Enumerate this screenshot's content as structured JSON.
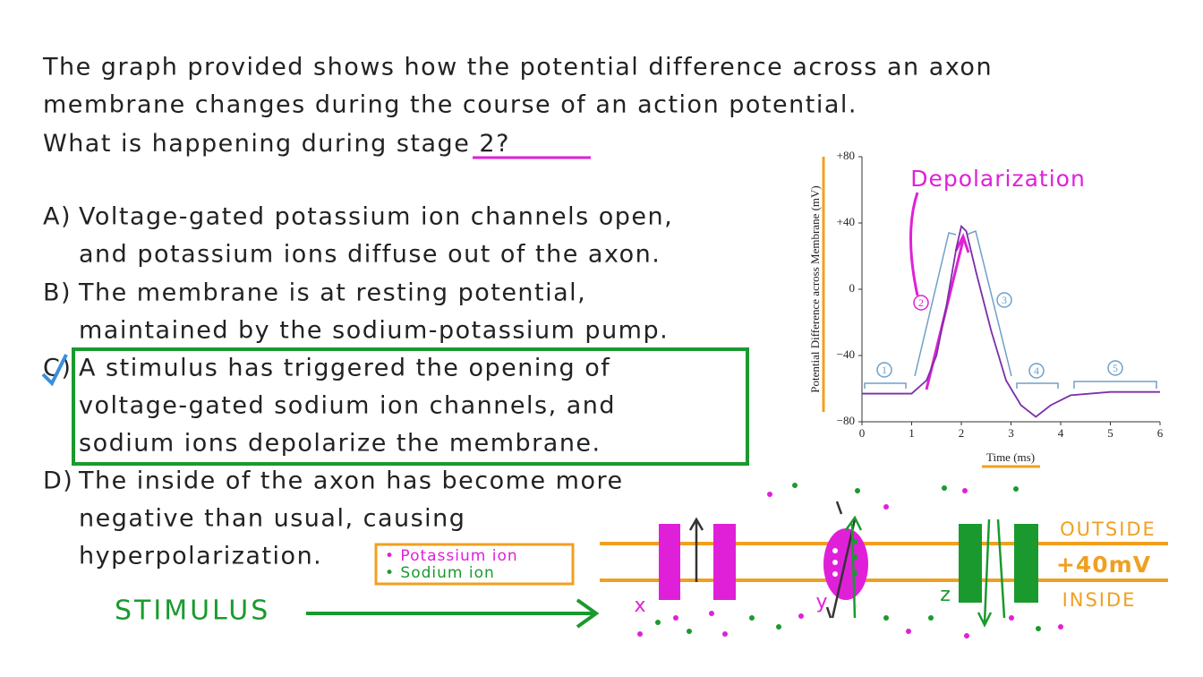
{
  "question": {
    "lines": [
      "The graph provided shows how the potential difference across an axon",
      "membrane changes during the course of an action potential."
    ],
    "prefix": "What is happening during ",
    "highlight": "stage 2",
    "suffix": "?"
  },
  "options": [
    {
      "letter": "A)",
      "lines": [
        "Voltage-gated potassium ion channels open,",
        "and potassium ions diffuse out of the axon."
      ]
    },
    {
      "letter": "B)",
      "lines": [
        "The membrane is at resting potential,",
        "maintained by the sodium-potassium pump."
      ]
    },
    {
      "letter": "C)",
      "lines": [
        "A stimulus has triggered the opening of",
        "voltage-gated sodium ion channels, and",
        "sodium ions depolarize the membrane."
      ]
    },
    {
      "letter": "D)",
      "lines": [
        "The inside of the axon has become more",
        "negative than usual, causing",
        "hyperpolarization."
      ]
    }
  ],
  "graph": {
    "type": "line",
    "ylabel": "Potential Difference across Membrane (mV)",
    "xlabel": "Time (ms)",
    "annotation": "Depolarization",
    "xlim": [
      0,
      6
    ],
    "xticks": [
      0,
      1,
      2,
      3,
      4,
      5,
      6
    ],
    "ylim": [
      -80,
      80
    ],
    "yticks": [
      {
        "value": 80,
        "label": "+80"
      },
      {
        "value": 40,
        "label": "+40"
      },
      0,
      {
        "value": -40,
        "label": "−40"
      },
      {
        "value": -80,
        "label": "−80"
      }
    ],
    "color": "#7b2fa8",
    "x": [
      0,
      1,
      1.3,
      1.5,
      1.7,
      1.9,
      2.0,
      2.1,
      2.3,
      2.6,
      2.9,
      3.2,
      3.5,
      3.8,
      4.2,
      5,
      6
    ],
    "values": [
      -63,
      -63,
      -55,
      -40,
      -10,
      25,
      38,
      35,
      10,
      -25,
      -55,
      -70,
      -77,
      -70,
      -64,
      -62,
      -62
    ],
    "stages": [
      "1",
      "2",
      "3",
      "4",
      "5"
    ]
  },
  "diagram": {
    "outside": "OUTSIDE",
    "voltage": "+40mV",
    "inside": "INSIDE",
    "channels": [
      "x",
      "y",
      "z"
    ],
    "legend": [
      "• Potassium ion",
      "• Sodium ion"
    ],
    "stimulus": "STIMULUS"
  }
}
